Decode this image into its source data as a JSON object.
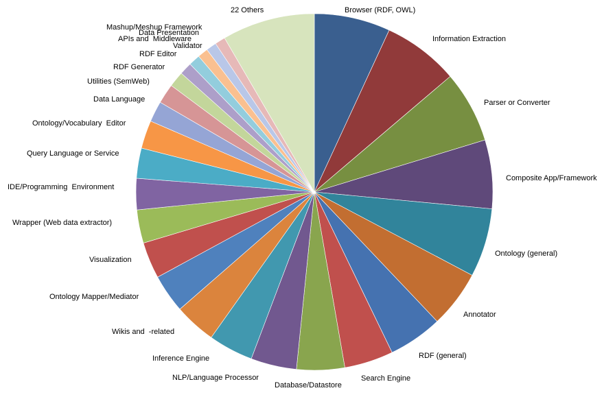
{
  "chart_data": {
    "type": "pie",
    "title": "",
    "start": "12 o'clock",
    "direction": "clockwise",
    "slices": [
      {
        "label": "Browser (RDF, OWL)",
        "value": 7.3,
        "color": "#3a5f8f"
      },
      {
        "label": "Information Extraction",
        "value": 7.3,
        "color": "#913a3a"
      },
      {
        "label": "Parser or Converter",
        "value": 6.9,
        "color": "#778f41"
      },
      {
        "label": "Composite App/Framework",
        "value": 6.6,
        "color": "#5f497a"
      },
      {
        "label": "Ontology (general)",
        "value": 6.6,
        "color": "#31849b"
      },
      {
        "label": "Annotator",
        "value": 5.5,
        "color": "#c26e31"
      },
      {
        "label": "RDF (general)",
        "value": 5.2,
        "color": "#4572b0"
      },
      {
        "label": "Search Engine",
        "value": 4.7,
        "color": "#c0504d"
      },
      {
        "label": "Database/Datastore",
        "value": 4.6,
        "color": "#89a54e"
      },
      {
        "label": "NLP/Language Processor",
        "value": 4.4,
        "color": "#71588f"
      },
      {
        "label": "Inference Engine",
        "value": 4.3,
        "color": "#4198af"
      },
      {
        "label": "Wikis and  -related",
        "value": 4.0,
        "color": "#db843d"
      },
      {
        "label": "Ontology Mapper/Mediator",
        "value": 3.7,
        "color": "#4f81bd"
      },
      {
        "label": "Visualization",
        "value": 3.5,
        "color": "#c0504d"
      },
      {
        "label": "Wrapper (Web data extractor)",
        "value": 3.2,
        "color": "#9bbb59"
      },
      {
        "label": "IDE/Programming  Environment",
        "value": 3.0,
        "color": "#8064a2"
      },
      {
        "label": "Query Language or Service",
        "value": 2.9,
        "color": "#4bacc6"
      },
      {
        "label": "Ontology/Vocabulary  Editor",
        "value": 2.7,
        "color": "#f79646"
      },
      {
        "label": "Data Language",
        "value": 2.0,
        "color": "#95a5d5"
      },
      {
        "label": "Utilities (SemWeb)",
        "value": 1.9,
        "color": "#d69596"
      },
      {
        "label": "RDF Generator",
        "value": 1.5,
        "color": "#c3d69b"
      },
      {
        "label": "RDF Editor",
        "value": 1.2,
        "color": "#ad9fc9"
      },
      {
        "label": "Validator",
        "value": 1.1,
        "color": "#93cddd"
      },
      {
        "label": "APIs and  Middleware",
        "value": 1.0,
        "color": "#fac090"
      },
      {
        "label": "Data Presentation",
        "value": 1.0,
        "color": "#b9c7e8"
      },
      {
        "label": "Mashup/Meshup Framework",
        "value": 1.0,
        "color": "#e6b9b8"
      },
      {
        "label": "22 Others",
        "value": 8.9,
        "color": "#d7e4bd"
      }
    ]
  }
}
